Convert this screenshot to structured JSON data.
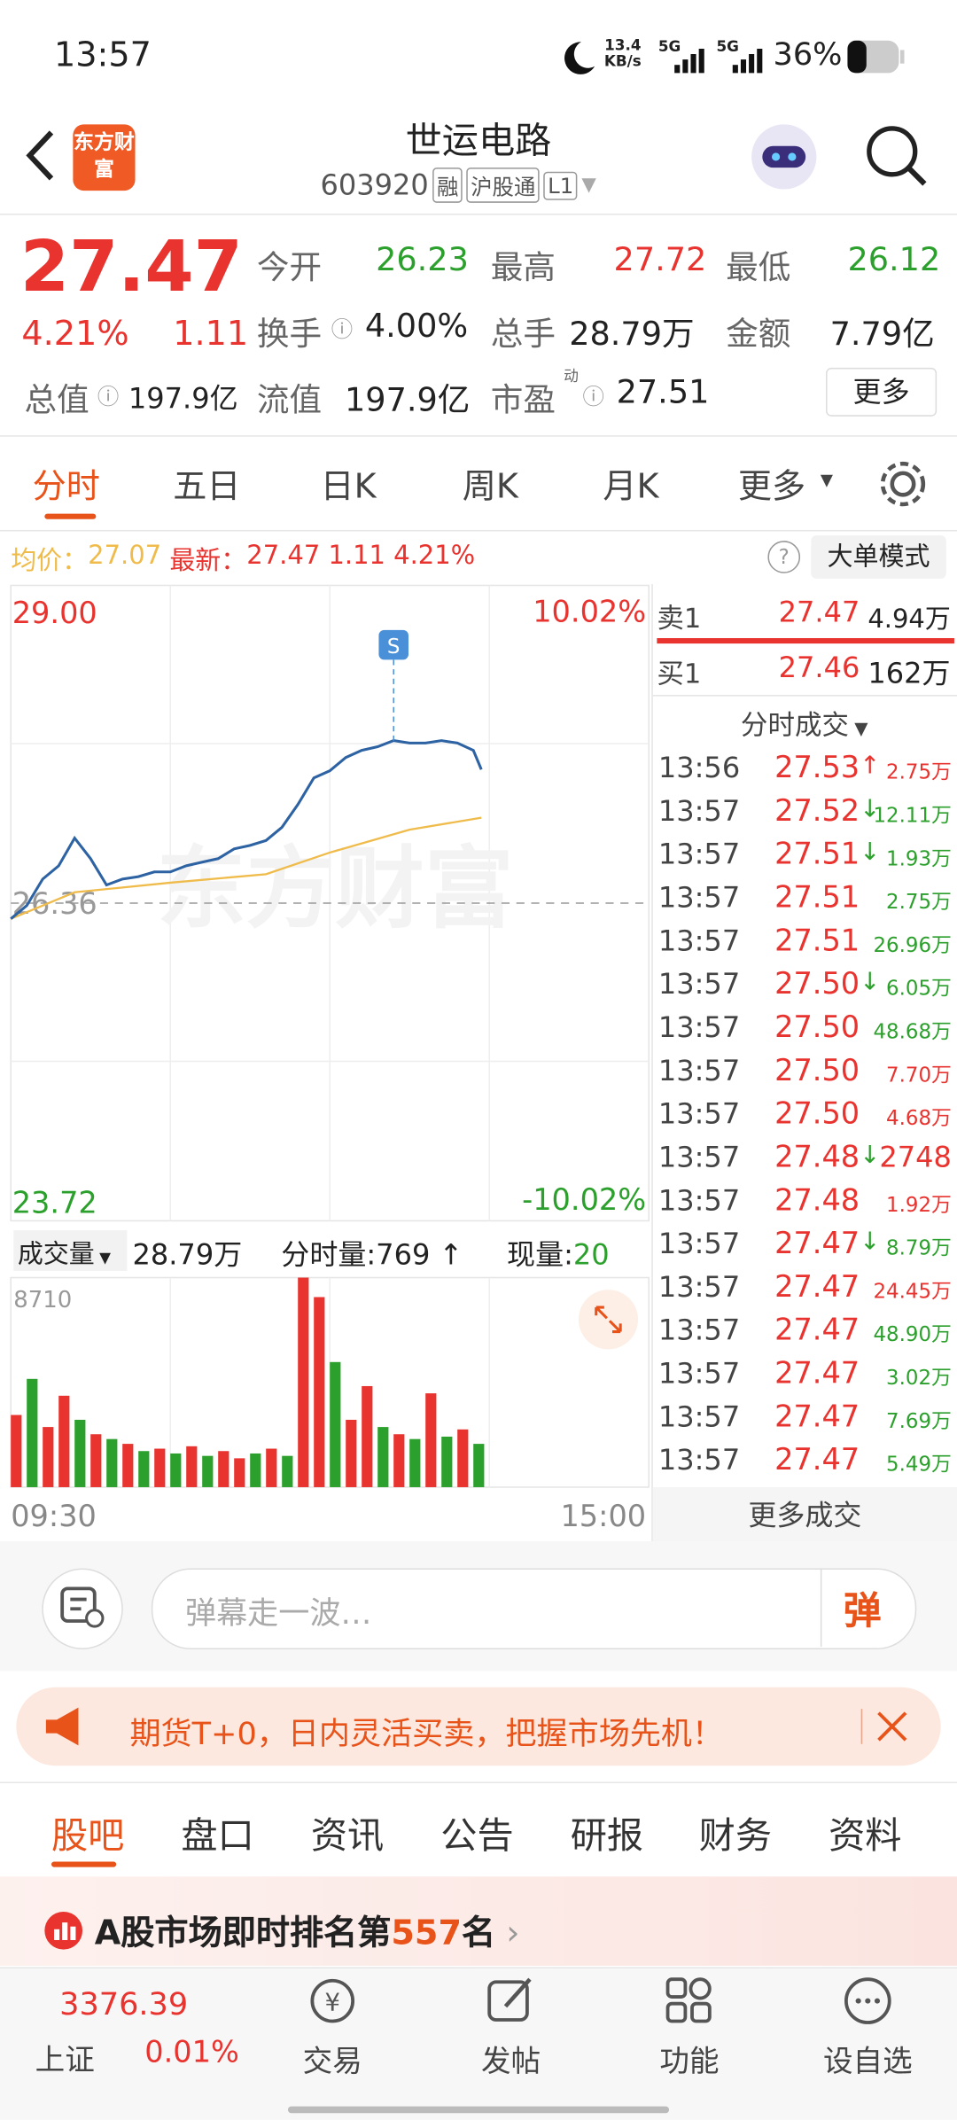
{
  "status_bar": {
    "time": "13:57",
    "net_speed": "13.4",
    "net_unit": "KB/s",
    "signal_1": "5G",
    "signal_2": "5G",
    "battery": "36%"
  },
  "header": {
    "logo": "东方财富",
    "title": "世运电路",
    "code": "603920",
    "tags": [
      "融",
      "沪股通",
      "L1"
    ]
  },
  "quote": {
    "price": "27.47",
    "change_pct": "4.21%",
    "change": "1.11",
    "fields": [
      {
        "label": "今开",
        "value": "26.23"
      },
      {
        "label": "最高",
        "value": "27.72"
      },
      {
        "label": "最低",
        "value": "26.12"
      },
      {
        "label": "换手",
        "value": "4.00%"
      },
      {
        "label": "总手",
        "value": "28.79万"
      },
      {
        "label": "金额",
        "value": "7.79亿"
      },
      {
        "label": "总值",
        "value": "197.9亿"
      },
      {
        "label": "流值",
        "value": "197.9亿"
      },
      {
        "label": "市盈",
        "sup": "动",
        "value": "27.51"
      }
    ],
    "more": "更多"
  },
  "chart_tabs": [
    "分时",
    "五日",
    "日K",
    "周K",
    "月K",
    "更多"
  ],
  "info_line": {
    "avg_label": "均价：",
    "avg": "27.07",
    "last_label": "最新：",
    "last": "27.47",
    "change": "1.11",
    "change_pct": "4.21%",
    "mode": "大单模式"
  },
  "intraday": {
    "type": "line",
    "watermark": "东方财富",
    "marker": "S",
    "xlim": [
      0,
      240
    ],
    "xticks": [
      {
        "value": 0,
        "label": "09:30"
      },
      {
        "value": 240,
        "label": "15:00"
      }
    ],
    "ylim": [
      23.72,
      29.0
    ],
    "yticks": [
      {
        "value": 29,
        "label": "29.00"
      },
      26.36,
      23.72
    ],
    "pct_labels": [
      "10.02%",
      "-10.02%"
    ],
    "price": {
      "color": "#2d62a3",
      "x": [
        0,
        6,
        12,
        18,
        24,
        30,
        36,
        42,
        48,
        54,
        60,
        66,
        72,
        78,
        84,
        90,
        96,
        102,
        108,
        114,
        120,
        126,
        132,
        138,
        144,
        150,
        156,
        162,
        168,
        174,
        177
      ],
      "values": [
        26.23,
        26.34,
        26.56,
        26.67,
        26.9,
        26.73,
        26.51,
        26.56,
        26.58,
        26.62,
        26.62,
        26.67,
        26.7,
        26.73,
        26.81,
        26.84,
        26.88,
        26.99,
        27.18,
        27.4,
        27.46,
        27.57,
        27.63,
        27.66,
        27.71,
        27.69,
        27.69,
        27.71,
        27.69,
        27.63,
        27.47
      ]
    },
    "avg": {
      "color": "#efbb4a",
      "x": [
        0,
        24,
        60,
        96,
        120,
        150,
        177
      ],
      "values": [
        26.23,
        26.45,
        26.53,
        26.6,
        26.78,
        26.97,
        27.07
      ]
    },
    "volume": {
      "label": "成交量",
      "total": "28.79万",
      "minute_label": "分时量:",
      "minute": "769",
      "minute_arrow": "↑",
      "now_label": "现量:",
      "now": "20",
      "ylim": [
        0,
        8710
      ],
      "yticks": [
        8710
      ],
      "x": [
        0,
        6,
        12,
        18,
        24,
        30,
        36,
        42,
        48,
        54,
        60,
        66,
        72,
        78,
        84,
        90,
        96,
        102,
        108,
        114,
        120,
        126,
        132,
        138,
        144,
        150,
        156,
        162,
        168,
        174
      ],
      "values": [
        3000,
        4500,
        2500,
        3800,
        2800,
        2200,
        2000,
        1800,
        1500,
        1600,
        1400,
        1700,
        1300,
        1500,
        1200,
        1400,
        1600,
        1300,
        8710,
        7900,
        5200,
        2800,
        4200,
        2500,
        2200,
        2000,
        3900,
        2100,
        2400,
        1800
      ],
      "colors": [
        "#e8332f",
        "#2ca02c",
        "#e8332f",
        "#e8332f",
        "#2ca02c",
        "#e8332f",
        "#2ca02c",
        "#e8332f",
        "#2ca02c",
        "#e8332f",
        "#2ca02c",
        "#e8332f",
        "#2ca02c",
        "#e8332f",
        "#e8332f",
        "#2ca02c",
        "#e8332f",
        "#2ca02c",
        "#e8332f",
        "#e8332f",
        "#2ca02c",
        "#e8332f",
        "#e8332f",
        "#2ca02c",
        "#e8332f",
        "#2ca02c",
        "#e8332f",
        "#2ca02c",
        "#e8332f",
        "#2ca02c"
      ]
    }
  },
  "order_book": {
    "ask": {
      "label": "卖1",
      "price": "27.47",
      "volume": "4.94万"
    },
    "bid": {
      "label": "买1",
      "price": "27.46",
      "volume": "162万"
    },
    "trades_title": "分时成交",
    "more": "更多成交",
    "trades": [
      {
        "time": "13:56",
        "price": "27.53",
        "arrow": "↑",
        "volume": "2.75万",
        "color": "#e8332f"
      },
      {
        "time": "13:57",
        "price": "27.52",
        "arrow": "↓",
        "volume": "12.11万",
        "color": "#2ca02c"
      },
      {
        "time": "13:57",
        "price": "27.51",
        "arrow": "↓",
        "volume": "1.93万",
        "color": "#2ca02c"
      },
      {
        "time": "13:57",
        "price": "27.51",
        "volume": "2.75万",
        "color": "#2ca02c"
      },
      {
        "time": "13:57",
        "price": "27.51",
        "volume": "26.96万",
        "color": "#2ca02c"
      },
      {
        "time": "13:57",
        "price": "27.50",
        "arrow": "↓",
        "volume": "6.05万",
        "color": "#2ca02c"
      },
      {
        "time": "13:57",
        "price": "27.50",
        "volume": "48.68万",
        "color": "#2ca02c"
      },
      {
        "time": "13:57",
        "price": "27.50",
        "volume": "7.70万",
        "color": "#e8332f"
      },
      {
        "time": "13:57",
        "price": "27.50",
        "volume": "4.68万",
        "color": "#e8332f"
      },
      {
        "time": "13:57",
        "price": "27.48",
        "arrow": "↓",
        "volume": "2748",
        "color": "#e8332f"
      },
      {
        "time": "13:57",
        "price": "27.48",
        "volume": "1.92万",
        "color": "#e8332f"
      },
      {
        "time": "13:57",
        "price": "27.47",
        "arrow": "↓",
        "volume": "8.79万",
        "color": "#2ca02c"
      },
      {
        "time": "13:57",
        "price": "27.47",
        "volume": "24.45万",
        "color": "#e8332f"
      },
      {
        "time": "13:57",
        "price": "27.47",
        "volume": "48.90万",
        "color": "#2ca02c"
      },
      {
        "time": "13:57",
        "price": "27.47",
        "volume": "3.02万",
        "color": "#2ca02c"
      },
      {
        "time": "13:57",
        "price": "27.47",
        "volume": "7.69万",
        "color": "#2ca02c"
      },
      {
        "time": "13:57",
        "price": "27.47",
        "volume": "5.49万",
        "color": "#2ca02c"
      }
    ]
  },
  "comment": {
    "placeholder": "弹幕走一波…",
    "button": "弹"
  },
  "banner": {
    "text": "期货T+0，日内灵活买卖，把握市场先机！"
  },
  "section_tabs": [
    "股吧",
    "盘口",
    "资讯",
    "公告",
    "研报",
    "财务",
    "资料"
  ],
  "ranking": {
    "prefix": "A股市场即时排名第",
    "rank": "557",
    "suffix": "名"
  },
  "bottom_nav": {
    "index_value": "3376.39",
    "index_name": "上证",
    "index_change": "0.01%",
    "items": [
      "交易",
      "发帖",
      "功能",
      "设自选"
    ]
  }
}
